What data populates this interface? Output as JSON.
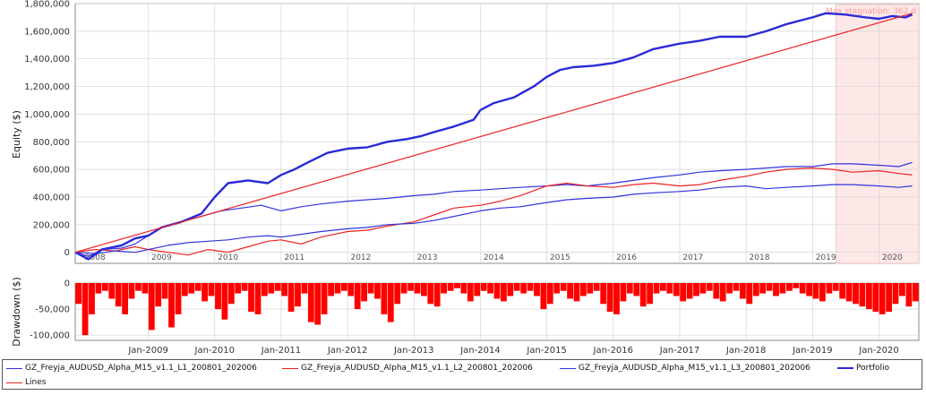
{
  "chart_data": [
    {
      "type": "line",
      "ylabel": "Equity ($)",
      "ylim": [
        -80000,
        1800000
      ],
      "y_ticks": [
        0,
        200000,
        400000,
        600000,
        800000,
        1000000,
        1200000,
        1400000,
        1600000,
        1800000
      ],
      "y_tick_labels": [
        "0",
        "200,000",
        "400,000",
        "600,000",
        "800,000",
        "1,000,000",
        "1,200,000",
        "1,400,000",
        "1,600,000",
        "1,800,000"
      ],
      "year_labels": [
        "2008",
        "2009",
        "2010",
        "2011",
        "2012",
        "2013",
        "2014",
        "2015",
        "2016",
        "2017",
        "2018",
        "2019",
        "2020"
      ],
      "year_label_x": [
        2008.2,
        2009.2,
        2010.2,
        2011.2,
        2012.2,
        2013.2,
        2014.2,
        2015.2,
        2016.2,
        2017.2,
        2018.2,
        2019.2,
        2020.2
      ],
      "xlim": [
        2007.9,
        2020.6
      ],
      "grid": true,
      "annotation": {
        "text": "Max stagnation: 362 d",
        "x_start": 2019.35,
        "x_end": 2020.6
      },
      "series": [
        {
          "name": "GZ_Freyja_AUDUSD_Alpha_M15_v1.1_L1_200801_202006",
          "color": "#3333dd",
          "width": 1.2,
          "x": [
            2007.9,
            2008.1,
            2008.3,
            2008.6,
            2008.8,
            2009.0,
            2009.2,
            2009.5,
            2009.8,
            2010.1,
            2010.4,
            2010.7,
            2011.0,
            2011.3,
            2011.6,
            2012.0,
            2012.3,
            2012.6,
            2013.0,
            2013.3,
            2013.6,
            2014.0,
            2014.3,
            2014.6,
            2015.0,
            2015.3,
            2015.6,
            2016.0,
            2016.3,
            2016.6,
            2017.0,
            2017.3,
            2017.6,
            2018.0,
            2018.3,
            2018.6,
            2019.0,
            2019.3,
            2019.6,
            2020.0,
            2020.3,
            2020.5
          ],
          "y": [
            0,
            -30000,
            20000,
            30000,
            60000,
            120000,
            180000,
            220000,
            260000,
            300000,
            320000,
            340000,
            300000,
            330000,
            350000,
            370000,
            380000,
            390000,
            410000,
            420000,
            440000,
            450000,
            460000,
            470000,
            480000,
            490000,
            480000,
            500000,
            520000,
            540000,
            560000,
            580000,
            590000,
            600000,
            610000,
            620000,
            620000,
            640000,
            640000,
            630000,
            620000,
            650000
          ]
        },
        {
          "name": "GZ_Freyja_AUDUSD_Alpha_M15_v1.1_L2_200801_202006",
          "color": "#ee2222",
          "width": 1.2,
          "x": [
            2007.9,
            2008.2,
            2008.5,
            2008.8,
            2009.0,
            2009.3,
            2009.6,
            2009.9,
            2010.2,
            2010.5,
            2010.8,
            2011.0,
            2011.3,
            2011.6,
            2012.0,
            2012.3,
            2012.6,
            2013.0,
            2013.3,
            2013.6,
            2014.0,
            2014.3,
            2014.6,
            2015.0,
            2015.3,
            2015.6,
            2016.0,
            2016.3,
            2016.6,
            2017.0,
            2017.3,
            2017.6,
            2018.0,
            2018.3,
            2018.6,
            2019.0,
            2019.3,
            2019.6,
            2020.0,
            2020.3,
            2020.5
          ],
          "y": [
            0,
            20000,
            10000,
            40000,
            20000,
            0,
            -20000,
            20000,
            0,
            40000,
            80000,
            90000,
            60000,
            110000,
            150000,
            160000,
            190000,
            220000,
            270000,
            320000,
            340000,
            370000,
            410000,
            480000,
            500000,
            480000,
            470000,
            490000,
            500000,
            480000,
            490000,
            520000,
            550000,
            580000,
            600000,
            610000,
            600000,
            580000,
            590000,
            570000,
            560000
          ]
        },
        {
          "name": "GZ_Freyja_AUDUSD_Alpha_M15_v1.1_L3_200801_202006",
          "color": "#3333dd",
          "width": 1.2,
          "x": [
            2007.9,
            2008.2,
            2008.5,
            2008.8,
            2009.0,
            2009.3,
            2009.6,
            2009.9,
            2010.2,
            2010.5,
            2010.8,
            2011.0,
            2011.3,
            2011.6,
            2012.0,
            2012.3,
            2012.6,
            2013.0,
            2013.3,
            2013.6,
            2014.0,
            2014.3,
            2014.6,
            2015.0,
            2015.3,
            2015.6,
            2016.0,
            2016.3,
            2016.6,
            2017.0,
            2017.3,
            2017.6,
            2018.0,
            2018.3,
            2018.6,
            2019.0,
            2019.3,
            2019.6,
            2020.0,
            2020.3,
            2020.5
          ],
          "y": [
            0,
            -10000,
            10000,
            0,
            20000,
            50000,
            70000,
            80000,
            90000,
            110000,
            120000,
            110000,
            130000,
            150000,
            170000,
            180000,
            200000,
            210000,
            230000,
            260000,
            300000,
            320000,
            330000,
            360000,
            380000,
            390000,
            400000,
            420000,
            430000,
            440000,
            450000,
            470000,
            480000,
            460000,
            470000,
            480000,
            490000,
            490000,
            480000,
            470000,
            480000
          ]
        },
        {
          "name": "Portfolio",
          "color": "#2a2ad8",
          "width": 2.4,
          "x": [
            2007.9,
            2008.1,
            2008.3,
            2008.6,
            2008.8,
            2009.0,
            2009.2,
            2009.5,
            2009.8,
            2010.0,
            2010.2,
            2010.5,
            2010.8,
            2011.0,
            2011.2,
            2011.4,
            2011.7,
            2012.0,
            2012.3,
            2012.6,
            2012.9,
            2013.1,
            2013.3,
            2013.6,
            2013.9,
            2014.0,
            2014.2,
            2014.5,
            2014.8,
            2015.0,
            2015.2,
            2015.4,
            2015.7,
            2016.0,
            2016.3,
            2016.6,
            2017.0,
            2017.3,
            2017.6,
            2018.0,
            2018.3,
            2018.6,
            2019.0,
            2019.2,
            2019.5,
            2019.8,
            2020.0,
            2020.2,
            2020.4,
            2020.5
          ],
          "y": [
            0,
            -50000,
            20000,
            50000,
            100000,
            120000,
            180000,
            220000,
            280000,
            400000,
            500000,
            520000,
            500000,
            560000,
            600000,
            650000,
            720000,
            750000,
            760000,
            800000,
            820000,
            840000,
            870000,
            910000,
            960000,
            1030000,
            1080000,
            1120000,
            1200000,
            1270000,
            1320000,
            1340000,
            1350000,
            1370000,
            1410000,
            1470000,
            1510000,
            1530000,
            1560000,
            1560000,
            1600000,
            1650000,
            1700000,
            1730000,
            1720000,
            1700000,
            1690000,
            1710000,
            1700000,
            1720000
          ]
        },
        {
          "name": "Lines",
          "color": "#ee2222",
          "width": 1.2,
          "x": [
            2007.9,
            2020.5
          ],
          "y": [
            0,
            1730000
          ]
        }
      ]
    },
    {
      "type": "bar",
      "ylabel": "Drawdown ($)",
      "ylim": [
        -110000,
        0
      ],
      "y_ticks": [
        0,
        -50000,
        -100000
      ],
      "y_tick_labels": [
        "0",
        "-50,000",
        "-100,000"
      ],
      "x_ticks": [
        2009.0,
        2010.0,
        2011.0,
        2012.0,
        2013.0,
        2014.0,
        2015.0,
        2016.0,
        2017.0,
        2018.0,
        2019.0,
        2020.0
      ],
      "x_tick_labels": [
        "Jan-2009",
        "Jan-2010",
        "Jan-2011",
        "Jan-2012",
        "Jan-2013",
        "Jan-2014",
        "Jan-2015",
        "Jan-2016",
        "Jan-2017",
        "Jan-2018",
        "Jan-2019",
        "Jan-2020"
      ],
      "xlim": [
        2007.9,
        2020.6
      ],
      "color": "#ff0000",
      "x": [
        2007.95,
        2008.05,
        2008.15,
        2008.25,
        2008.35,
        2008.45,
        2008.55,
        2008.65,
        2008.75,
        2008.85,
        2008.95,
        2009.05,
        2009.15,
        2009.25,
        2009.35,
        2009.45,
        2009.55,
        2009.65,
        2009.75,
        2009.85,
        2009.95,
        2010.05,
        2010.15,
        2010.25,
        2010.35,
        2010.45,
        2010.55,
        2010.65,
        2010.75,
        2010.85,
        2010.95,
        2011.05,
        2011.15,
        2011.25,
        2011.35,
        2011.45,
        2011.55,
        2011.65,
        2011.75,
        2011.85,
        2011.95,
        2012.05,
        2012.15,
        2012.25,
        2012.35,
        2012.45,
        2012.55,
        2012.65,
        2012.75,
        2012.85,
        2012.95,
        2013.05,
        2013.15,
        2013.25,
        2013.35,
        2013.45,
        2013.55,
        2013.65,
        2013.75,
        2013.85,
        2013.95,
        2014.05,
        2014.15,
        2014.25,
        2014.35,
        2014.45,
        2014.55,
        2014.65,
        2014.75,
        2014.85,
        2014.95,
        2015.05,
        2015.15,
        2015.25,
        2015.35,
        2015.45,
        2015.55,
        2015.65,
        2015.75,
        2015.85,
        2015.95,
        2016.05,
        2016.15,
        2016.25,
        2016.35,
        2016.45,
        2016.55,
        2016.65,
        2016.75,
        2016.85,
        2016.95,
        2017.05,
        2017.15,
        2017.25,
        2017.35,
        2017.45,
        2017.55,
        2017.65,
        2017.75,
        2017.85,
        2017.95,
        2018.05,
        2018.15,
        2018.25,
        2018.35,
        2018.45,
        2018.55,
        2018.65,
        2018.75,
        2018.85,
        2018.95,
        2019.05,
        2019.15,
        2019.25,
        2019.35,
        2019.45,
        2019.55,
        2019.65,
        2019.75,
        2019.85,
        2019.95,
        2020.05,
        2020.15,
        2020.25,
        2020.35,
        2020.45,
        2020.55
      ],
      "values": [
        -40000,
        -100000,
        -60000,
        -20000,
        -15000,
        -30000,
        -45000,
        -60000,
        -30000,
        -15000,
        -20000,
        -90000,
        -45000,
        -30000,
        -85000,
        -60000,
        -25000,
        -20000,
        -15000,
        -35000,
        -25000,
        -50000,
        -70000,
        -40000,
        -20000,
        -15000,
        -55000,
        -60000,
        -25000,
        -20000,
        -15000,
        -25000,
        -55000,
        -45000,
        -20000,
        -75000,
        -80000,
        -60000,
        -25000,
        -20000,
        -15000,
        -25000,
        -50000,
        -35000,
        -20000,
        -30000,
        -60000,
        -75000,
        -40000,
        -20000,
        -15000,
        -20000,
        -25000,
        -40000,
        -45000,
        -20000,
        -15000,
        -10000,
        -20000,
        -35000,
        -25000,
        -15000,
        -20000,
        -30000,
        -35000,
        -25000,
        -15000,
        -20000,
        -15000,
        -25000,
        -50000,
        -40000,
        -20000,
        -15000,
        -30000,
        -35000,
        -25000,
        -20000,
        -15000,
        -40000,
        -55000,
        -60000,
        -35000,
        -20000,
        -25000,
        -45000,
        -40000,
        -20000,
        -15000,
        -20000,
        -25000,
        -35000,
        -30000,
        -25000,
        -20000,
        -15000,
        -30000,
        -35000,
        -20000,
        -15000,
        -30000,
        -40000,
        -25000,
        -20000,
        -15000,
        -25000,
        -20000,
        -15000,
        -10000,
        -20000,
        -25000,
        -30000,
        -35000,
        -20000,
        -15000,
        -30000,
        -35000,
        -40000,
        -45000,
        -50000,
        -55000,
        -60000,
        -55000,
        -40000,
        -25000,
        -45000,
        -35000
      ]
    }
  ],
  "legend": {
    "items": [
      {
        "label": "GZ_Freyja_AUDUSD_Alpha_M15_v1.1_L1_200801_202006",
        "color": "#3333dd"
      },
      {
        "label": "GZ_Freyja_AUDUSD_Alpha_M15_v1.1_L2_200801_202006",
        "color": "#ee2222"
      },
      {
        "label": "GZ_Freyja_AUDUSD_Alpha_M15_v1.1_L3_200801_202006",
        "color": "#3333dd"
      },
      {
        "label": "Portfolio",
        "color": "#2a2ad8"
      },
      {
        "label": "Lines",
        "color": "#ee2222"
      }
    ]
  }
}
